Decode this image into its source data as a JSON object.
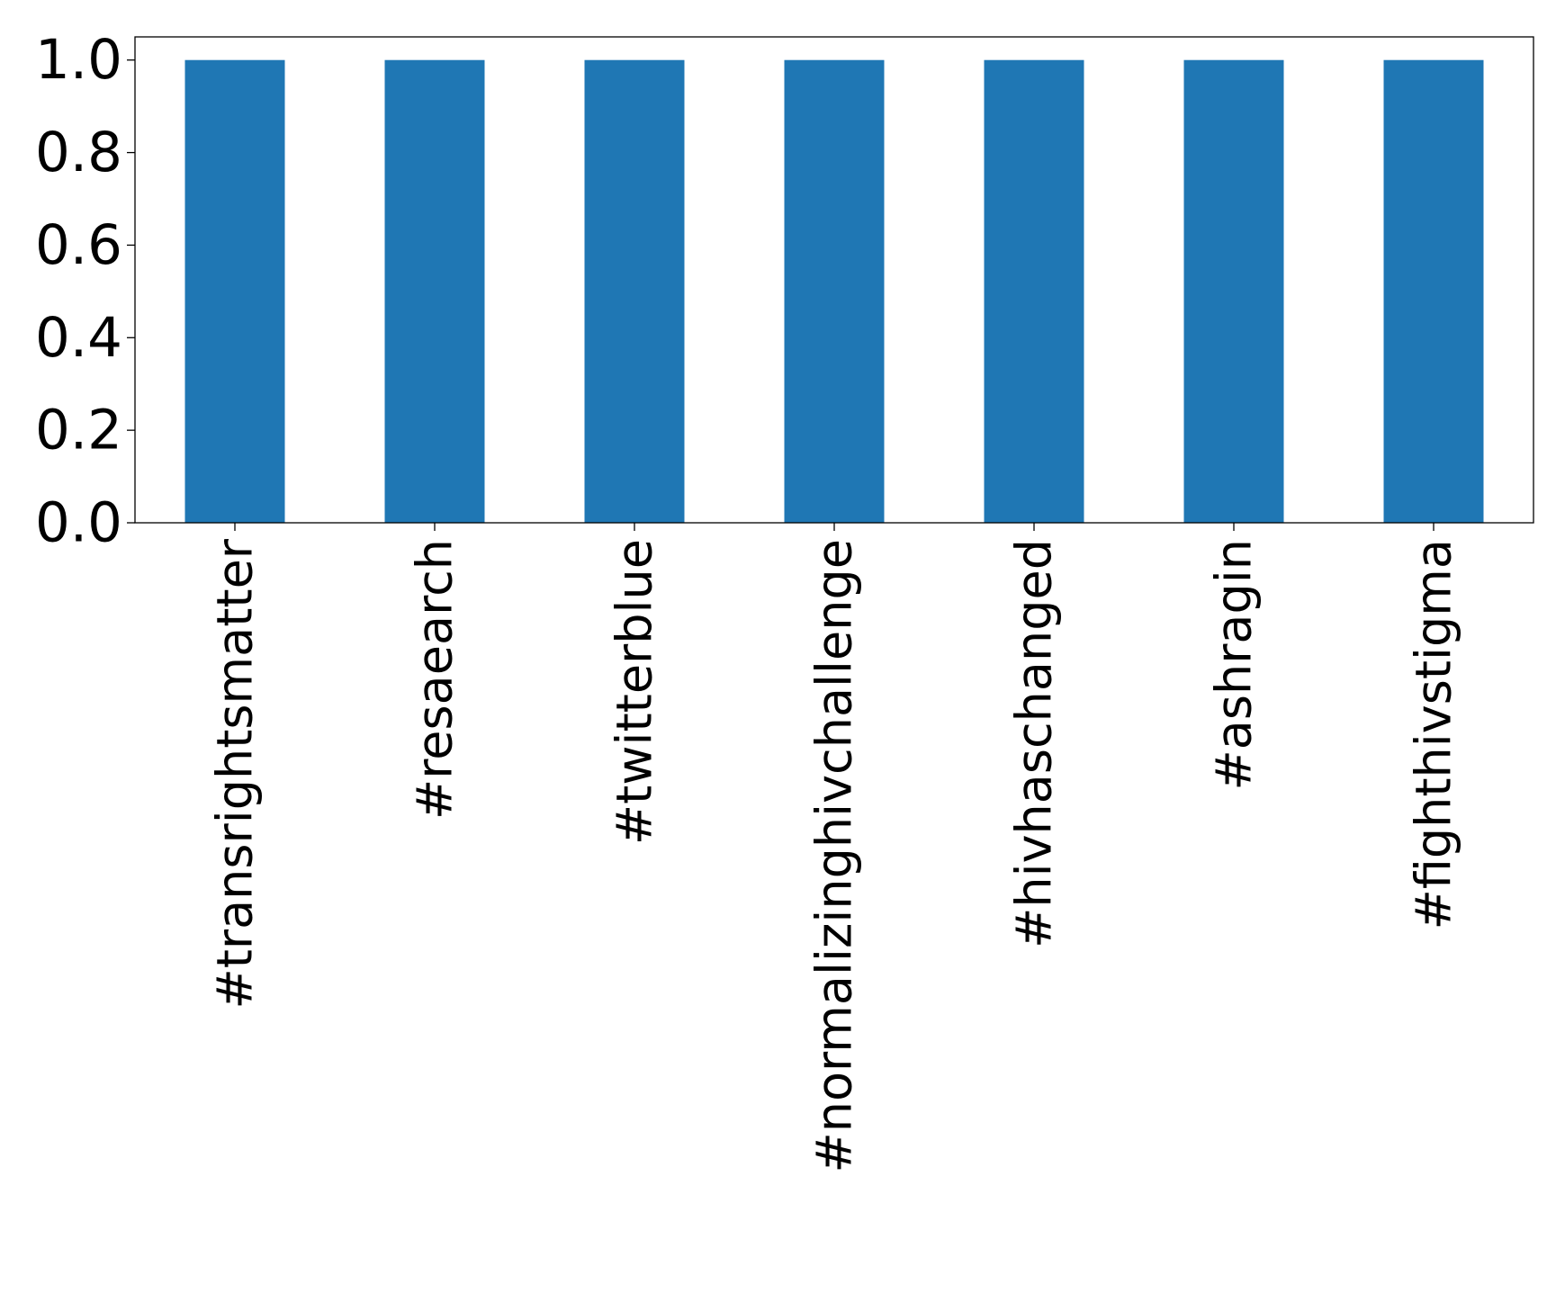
{
  "chart_data": {
    "type": "bar",
    "title": "",
    "xlabel": "",
    "ylabel": "",
    "categories": [
      "#transrightsmatter",
      "#resaearch",
      "#twitterblue",
      "#normalizinghivchallenge",
      "#hivhaschanged",
      "#ashragin",
      "#fighthivstigma"
    ],
    "values": [
      1.0,
      1.0,
      1.0,
      1.0,
      1.0,
      1.0,
      1.0
    ],
    "ylim": [
      0,
      1.05
    ],
    "yticks": [
      "0.0",
      "0.2",
      "0.4",
      "0.6",
      "0.8",
      "1.0"
    ],
    "bar_color": "#1f77b4",
    "grid": false,
    "legend": "none"
  }
}
